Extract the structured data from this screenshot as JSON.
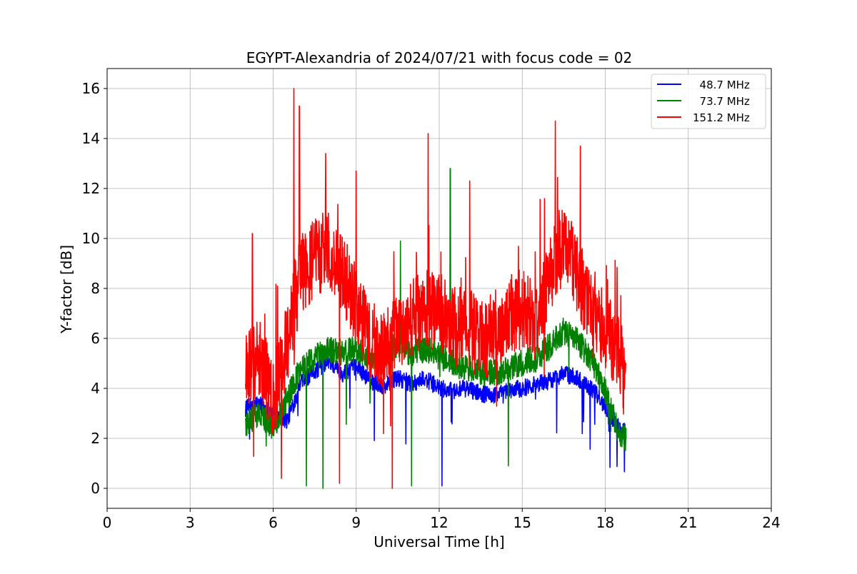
{
  "chart_data": {
    "type": "line",
    "title": "EGYPT-Alexandria of 2024/07/21 with focus code = 02",
    "xlabel": "Universal Time [h]",
    "ylabel": "Y-factor [dB]",
    "xlim": [
      0,
      24
    ],
    "ylim": [
      -0.8,
      16.8
    ],
    "xticks": [
      0,
      3,
      6,
      9,
      12,
      15,
      18,
      21,
      24
    ],
    "yticks": [
      0,
      2,
      4,
      6,
      8,
      10,
      12,
      14,
      16
    ],
    "grid": true,
    "legend_position": "top-right",
    "series": [
      {
        "name": "  48.7 MHz",
        "color": "#0000ff",
        "x": [
          5.0,
          5.5,
          6.0,
          6.5,
          7.0,
          7.5,
          8.0,
          8.5,
          9.0,
          9.5,
          10.0,
          10.5,
          11.0,
          11.5,
          12.0,
          12.5,
          13.0,
          13.5,
          14.0,
          14.5,
          15.0,
          15.5,
          16.0,
          16.5,
          17.0,
          17.5,
          18.0,
          18.5,
          18.75
        ],
        "y": [
          3.2,
          3.4,
          3.0,
          2.7,
          4.2,
          4.7,
          5.1,
          4.6,
          4.9,
          4.3,
          4.1,
          4.4,
          4.2,
          4.4,
          4.0,
          3.9,
          4.0,
          3.8,
          3.7,
          3.9,
          4.0,
          4.2,
          4.3,
          4.6,
          4.4,
          4.0,
          3.3,
          2.4,
          2.3
        ]
      },
      {
        "name": "  73.7 MHz",
        "color": "#008000",
        "x": [
          5.0,
          5.5,
          6.0,
          6.5,
          7.0,
          7.5,
          8.0,
          8.5,
          9.0,
          9.5,
          10.0,
          10.5,
          11.0,
          11.5,
          12.0,
          12.5,
          13.0,
          13.5,
          14.0,
          14.5,
          15.0,
          15.5,
          16.0,
          16.5,
          17.0,
          17.5,
          18.0,
          18.5,
          18.75
        ],
        "y": [
          2.6,
          3.0,
          2.4,
          3.6,
          4.8,
          5.2,
          5.6,
          5.4,
          5.6,
          5.2,
          5.3,
          5.8,
          5.4,
          5.6,
          5.3,
          5.0,
          4.8,
          4.6,
          4.6,
          4.8,
          5.0,
          5.2,
          5.7,
          6.3,
          5.9,
          5.2,
          3.9,
          2.2,
          2.0
        ]
      },
      {
        "name": "151.2 MHz",
        "color": "#ff0000",
        "x": [
          5.0,
          5.5,
          6.0,
          6.5,
          7.0,
          7.5,
          8.0,
          8.5,
          9.0,
          9.5,
          10.0,
          10.5,
          11.0,
          11.5,
          12.0,
          12.5,
          13.0,
          13.5,
          14.0,
          14.5,
          15.0,
          15.5,
          16.0,
          16.5,
          17.0,
          17.5,
          18.0,
          18.5,
          18.75
        ],
        "y": [
          4.8,
          5.2,
          3.6,
          5.8,
          8.6,
          9.2,
          9.6,
          8.6,
          7.4,
          6.0,
          5.4,
          6.2,
          6.8,
          7.2,
          7.0,
          6.4,
          6.6,
          5.8,
          6.3,
          6.9,
          7.2,
          6.6,
          8.4,
          10.2,
          8.6,
          6.9,
          6.3,
          5.5,
          4.0
        ]
      }
    ],
    "peaks": [
      {
        "series": 2,
        "x": 5.25,
        "y": 10.2
      },
      {
        "series": 2,
        "x": 6.75,
        "y": 16.0
      },
      {
        "series": 2,
        "x": 6.95,
        "y": 15.3
      },
      {
        "series": 2,
        "x": 7.9,
        "y": 13.4
      },
      {
        "series": 2,
        "x": 9.0,
        "y": 12.7
      },
      {
        "series": 2,
        "x": 11.6,
        "y": 14.2
      },
      {
        "series": 2,
        "x": 13.1,
        "y": 12.3
      },
      {
        "series": 2,
        "x": 16.2,
        "y": 14.7
      },
      {
        "series": 2,
        "x": 17.1,
        "y": 13.7
      },
      {
        "series": 1,
        "x": 12.4,
        "y": 12.8
      },
      {
        "series": 1,
        "x": 10.6,
        "y": 9.9
      }
    ],
    "dips": [
      {
        "series": 2,
        "x": 6.3,
        "y": 0.4
      },
      {
        "series": 1,
        "x": 7.2,
        "y": 0.1
      },
      {
        "series": 1,
        "x": 7.8,
        "y": 0.0
      },
      {
        "series": 2,
        "x": 10.3,
        "y": 0.0
      },
      {
        "series": 1,
        "x": 11.0,
        "y": 0.1
      },
      {
        "series": 0,
        "x": 12.1,
        "y": 0.1
      },
      {
        "series": 2,
        "x": 8.4,
        "y": 0.2
      },
      {
        "series": 1,
        "x": 14.5,
        "y": 0.9
      }
    ]
  }
}
